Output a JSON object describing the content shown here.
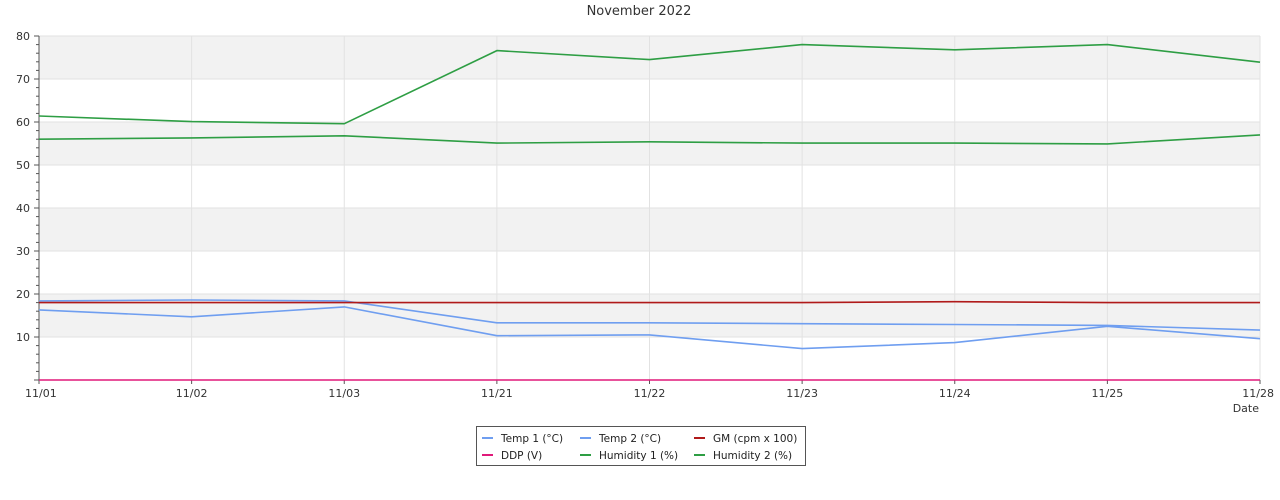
{
  "chart_data": {
    "type": "line",
    "title": "November 2022",
    "xlabel": "Date",
    "ylabel": "",
    "categories": [
      "11/01",
      "11/02",
      "11/03",
      "11/21",
      "11/22",
      "11/23",
      "11/24",
      "11/25",
      "11/28"
    ],
    "ylim": [
      0,
      80
    ],
    "yticks": [
      10,
      20,
      30,
      40,
      50,
      60,
      70,
      80
    ],
    "grid": true,
    "legend_position": "bottom-center",
    "series": [
      {
        "name": "Temp 1 (°C)",
        "color": "#6f9ef0",
        "values": [
          16.3,
          14.7,
          17.0,
          10.3,
          10.5,
          7.3,
          8.7,
          12.5,
          9.6
        ]
      },
      {
        "name": "Temp 2 (°C)",
        "color": "#6f9ef0",
        "values": [
          18.4,
          18.6,
          18.4,
          13.3,
          13.3,
          13.1,
          12.9,
          12.7,
          11.6
        ]
      },
      {
        "name": "GM (cpm x 100)",
        "color": "#b01a1a",
        "values": [
          18.0,
          18.0,
          18.0,
          18.0,
          18.0,
          18.0,
          18.2,
          18.0,
          18.0
        ]
      },
      {
        "name": "DDP (V)",
        "color": "#e0197a",
        "values": [
          0,
          0,
          0,
          0,
          0,
          0,
          0,
          0,
          0
        ]
      },
      {
        "name": "Humidity 1 (%)",
        "color": "#2e9e44",
        "values": [
          61.4,
          60.1,
          59.6,
          76.6,
          74.5,
          78.0,
          76.8,
          78.0,
          73.9
        ]
      },
      {
        "name": "Humidity 2 (%)",
        "color": "#2e9e44",
        "values": [
          56.0,
          56.3,
          56.8,
          55.1,
          55.4,
          55.1,
          55.1,
          54.9,
          57.0
        ]
      }
    ]
  }
}
